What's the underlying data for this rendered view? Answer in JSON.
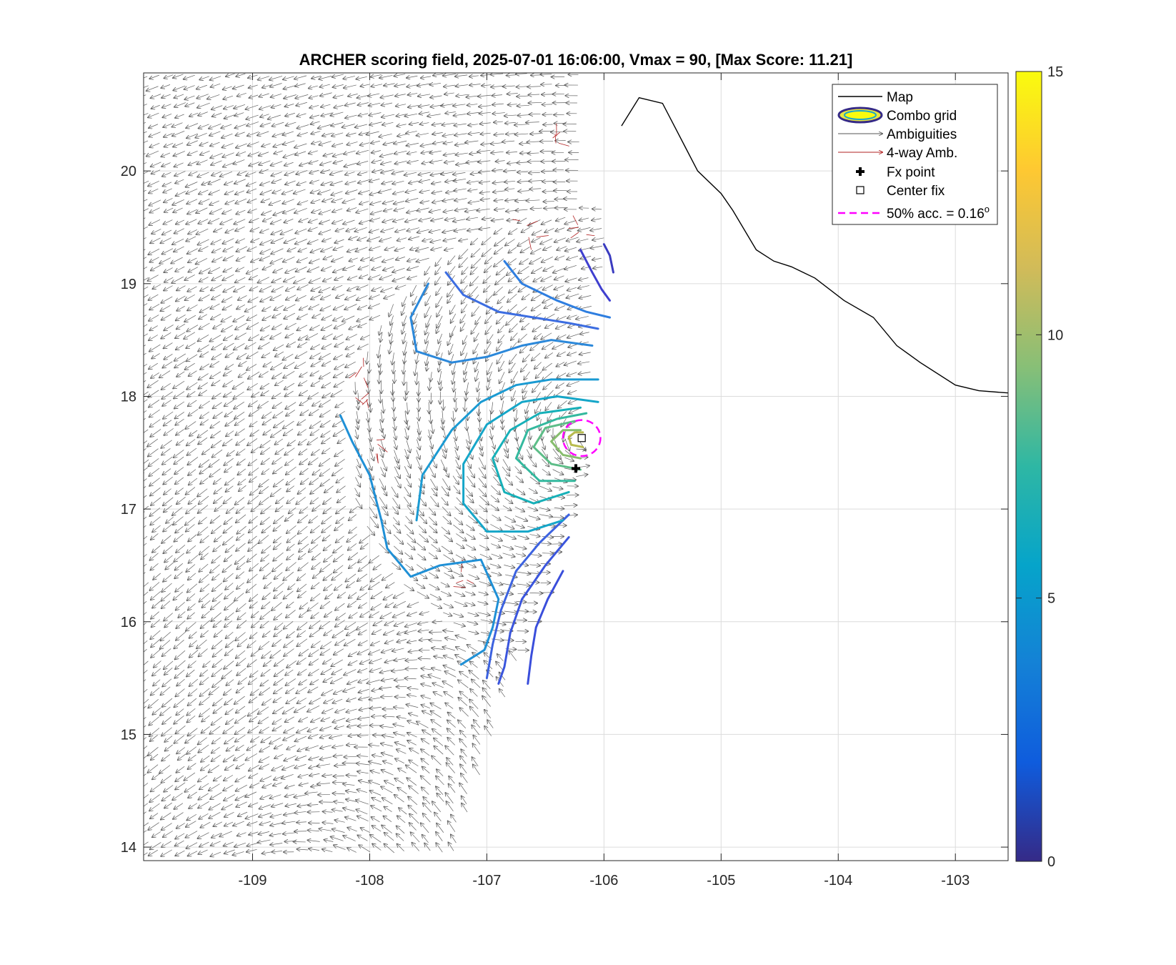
{
  "chart_data": {
    "type": "contour",
    "title": "ARCHER scoring field, 2025-07-01 16:06:00, Vmax = 90, [Max Score: 11.21]",
    "xlabel": "",
    "ylabel": "",
    "xlim": [
      -109.93,
      -102.55
    ],
    "ylim": [
      13.88,
      20.87
    ],
    "x_ticks": [
      "-109",
      "-108",
      "-107",
      "-106",
      "-105",
      "-104",
      "-103"
    ],
    "y_ticks": [
      "14",
      "15",
      "16",
      "17",
      "18",
      "19",
      "20"
    ],
    "grid": true,
    "colorbar": {
      "range": [
        0,
        15
      ],
      "ticks": [
        "0",
        "5",
        "10",
        "15"
      ],
      "colormap": "parula",
      "colors": [
        "#352a87",
        "#0f5cdd",
        "#1481d6",
        "#06a4ca",
        "#2eb7a4",
        "#87bf77",
        "#d1bb59",
        "#fec832",
        "#f9fb0e"
      ]
    },
    "center_fix": {
      "lon": -106.19,
      "lat": 17.63
    },
    "fx_point": {
      "lon": -106.24,
      "lat": 17.36
    },
    "accuracy_50pct_deg": 0.16,
    "max_score": 11.21,
    "legend": {
      "position": "top-right",
      "entries": [
        {
          "label": "Map",
          "color": "#000000"
        },
        {
          "label": "Combo grid",
          "color": "#352a87"
        },
        {
          "label": "Ambiguities",
          "color": "#555555"
        },
        {
          "label": "4-way Amb.",
          "color": "#b22222"
        },
        {
          "label": "Fx point",
          "color": "#000000"
        },
        {
          "label": "Center fix",
          "color": "#000000"
        },
        {
          "label": "50% acc. = 0.16",
          "superscript": "o",
          "color": "#ff00ff"
        }
      ]
    },
    "coastline": [
      [
        -105.85,
        20.4
      ],
      [
        -105.7,
        20.65
      ],
      [
        -105.5,
        20.6
      ],
      [
        -105.4,
        20.4
      ],
      [
        -105.3,
        20.2
      ],
      [
        -105.2,
        20.0
      ],
      [
        -105.0,
        19.8
      ],
      [
        -104.9,
        19.65
      ],
      [
        -104.7,
        19.3
      ],
      [
        -104.55,
        19.2
      ],
      [
        -104.4,
        19.15
      ],
      [
        -104.2,
        19.05
      ],
      [
        -103.95,
        18.85
      ],
      [
        -103.7,
        18.7
      ],
      [
        -103.5,
        18.45
      ],
      [
        -103.3,
        18.3
      ],
      [
        -103.0,
        18.1
      ],
      [
        -102.8,
        18.05
      ],
      [
        -102.55,
        18.03
      ]
    ],
    "contours": [
      {
        "level": 1.5,
        "color": "#3a3bc0",
        "pts": [
          [
            -106.0,
            19.35
          ],
          [
            -105.95,
            19.25
          ],
          [
            -105.92,
            19.1
          ]
        ]
      },
      {
        "level": 2.0,
        "color": "#3f3fcf",
        "pts": [
          [
            -106.2,
            19.3
          ],
          [
            -106.1,
            19.1
          ],
          [
            -106.02,
            18.95
          ],
          [
            -105.95,
            18.85
          ]
        ]
      },
      {
        "level": 2.5,
        "color": "#3a4edb",
        "pts": [
          [
            -106.35,
            16.45
          ],
          [
            -106.48,
            16.2
          ],
          [
            -106.58,
            15.95
          ],
          [
            -106.62,
            15.7
          ],
          [
            -106.65,
            15.45
          ]
        ]
      },
      {
        "level": 3.0,
        "color": "#3a55dd",
        "pts": [
          [
            -106.3,
            16.75
          ],
          [
            -106.5,
            16.5
          ],
          [
            -106.7,
            16.2
          ],
          [
            -106.8,
            15.9
          ],
          [
            -106.85,
            15.6
          ],
          [
            -106.9,
            15.45
          ]
        ]
      },
      {
        "level": 3.5,
        "color": "#3c62e0",
        "pts": [
          [
            -106.3,
            16.95
          ],
          [
            -106.55,
            16.7
          ],
          [
            -106.75,
            16.45
          ],
          [
            -106.88,
            16.1
          ],
          [
            -106.95,
            15.8
          ],
          [
            -107.0,
            15.5
          ]
        ]
      },
      {
        "level": 4.0,
        "color": "#3c6de1",
        "pts": [
          [
            -107.35,
            19.1
          ],
          [
            -107.2,
            18.9
          ],
          [
            -106.9,
            18.75
          ],
          [
            -106.6,
            18.7
          ],
          [
            -106.3,
            18.65
          ],
          [
            -106.05,
            18.6
          ]
        ]
      },
      {
        "level": 4.5,
        "color": "#2e7ee0",
        "pts": [
          [
            -106.85,
            19.2
          ],
          [
            -106.7,
            19.0
          ],
          [
            -106.4,
            18.85
          ],
          [
            -106.15,
            18.75
          ],
          [
            -105.95,
            18.7
          ]
        ]
      },
      {
        "level": 5.0,
        "color": "#2b88da",
        "pts": [
          [
            -107.5,
            19.0
          ],
          [
            -107.65,
            18.7
          ],
          [
            -107.6,
            18.4
          ],
          [
            -107.3,
            18.3
          ],
          [
            -107.0,
            18.35
          ],
          [
            -106.7,
            18.45
          ],
          [
            -106.45,
            18.5
          ],
          [
            -106.1,
            18.45
          ]
        ]
      },
      {
        "level": 5.5,
        "color": "#1f90d6",
        "pts": [
          [
            -108.25,
            17.83
          ],
          [
            -108.15,
            17.6
          ],
          [
            -108.0,
            17.3
          ],
          [
            -107.95,
            17.1
          ],
          [
            -107.9,
            16.9
          ],
          [
            -107.85,
            16.65
          ],
          [
            -107.65,
            16.4
          ],
          [
            -107.4,
            16.5
          ],
          [
            -107.05,
            16.55
          ],
          [
            -106.9,
            16.2
          ],
          [
            -106.95,
            15.95
          ],
          [
            -107.02,
            15.75
          ],
          [
            -107.22,
            15.62
          ]
        ]
      },
      {
        "level": 6.0,
        "color": "#1a9ad2",
        "pts": [
          [
            -107.6,
            16.9
          ],
          [
            -107.55,
            17.3
          ],
          [
            -107.3,
            17.7
          ],
          [
            -107.05,
            17.95
          ],
          [
            -106.75,
            18.1
          ],
          [
            -106.45,
            18.15
          ],
          [
            -106.05,
            18.15
          ]
        ]
      },
      {
        "level": 6.5,
        "color": "#15a6c8",
        "pts": [
          [
            -106.35,
            16.9
          ],
          [
            -106.65,
            16.8
          ],
          [
            -107.0,
            16.8
          ],
          [
            -107.2,
            17.05
          ],
          [
            -107.2,
            17.4
          ],
          [
            -107.0,
            17.75
          ],
          [
            -106.7,
            17.95
          ],
          [
            -106.4,
            18.0
          ],
          [
            -106.05,
            17.95
          ]
        ]
      },
      {
        "level": 7.0,
        "color": "#16b0b8",
        "pts": [
          [
            -106.3,
            17.15
          ],
          [
            -106.6,
            17.05
          ],
          [
            -106.85,
            17.15
          ],
          [
            -106.95,
            17.45
          ],
          [
            -106.8,
            17.7
          ],
          [
            -106.55,
            17.85
          ],
          [
            -106.2,
            17.9
          ]
        ]
      },
      {
        "level": 8.0,
        "color": "#33b99e",
        "pts": [
          [
            -106.25,
            17.25
          ],
          [
            -106.55,
            17.25
          ],
          [
            -106.75,
            17.45
          ],
          [
            -106.65,
            17.7
          ],
          [
            -106.4,
            17.8
          ],
          [
            -106.15,
            17.85
          ]
        ]
      },
      {
        "level": 9.0,
        "color": "#5dbd88",
        "pts": [
          [
            -106.2,
            17.35
          ],
          [
            -106.45,
            17.4
          ],
          [
            -106.6,
            17.55
          ],
          [
            -106.5,
            17.72
          ],
          [
            -106.25,
            17.78
          ]
        ]
      },
      {
        "level": 10.0,
        "color": "#87bd6e",
        "pts": [
          [
            -106.2,
            17.45
          ],
          [
            -106.35,
            17.48
          ],
          [
            -106.45,
            17.6
          ],
          [
            -106.35,
            17.7
          ],
          [
            -106.2,
            17.7
          ]
        ]
      },
      {
        "level": 11.0,
        "color": "#b8bb4e",
        "pts": [
          [
            -106.18,
            17.55
          ],
          [
            -106.28,
            17.57
          ],
          [
            -106.3,
            17.64
          ],
          [
            -106.25,
            17.68
          ],
          [
            -106.18,
            17.68
          ]
        ]
      }
    ]
  }
}
